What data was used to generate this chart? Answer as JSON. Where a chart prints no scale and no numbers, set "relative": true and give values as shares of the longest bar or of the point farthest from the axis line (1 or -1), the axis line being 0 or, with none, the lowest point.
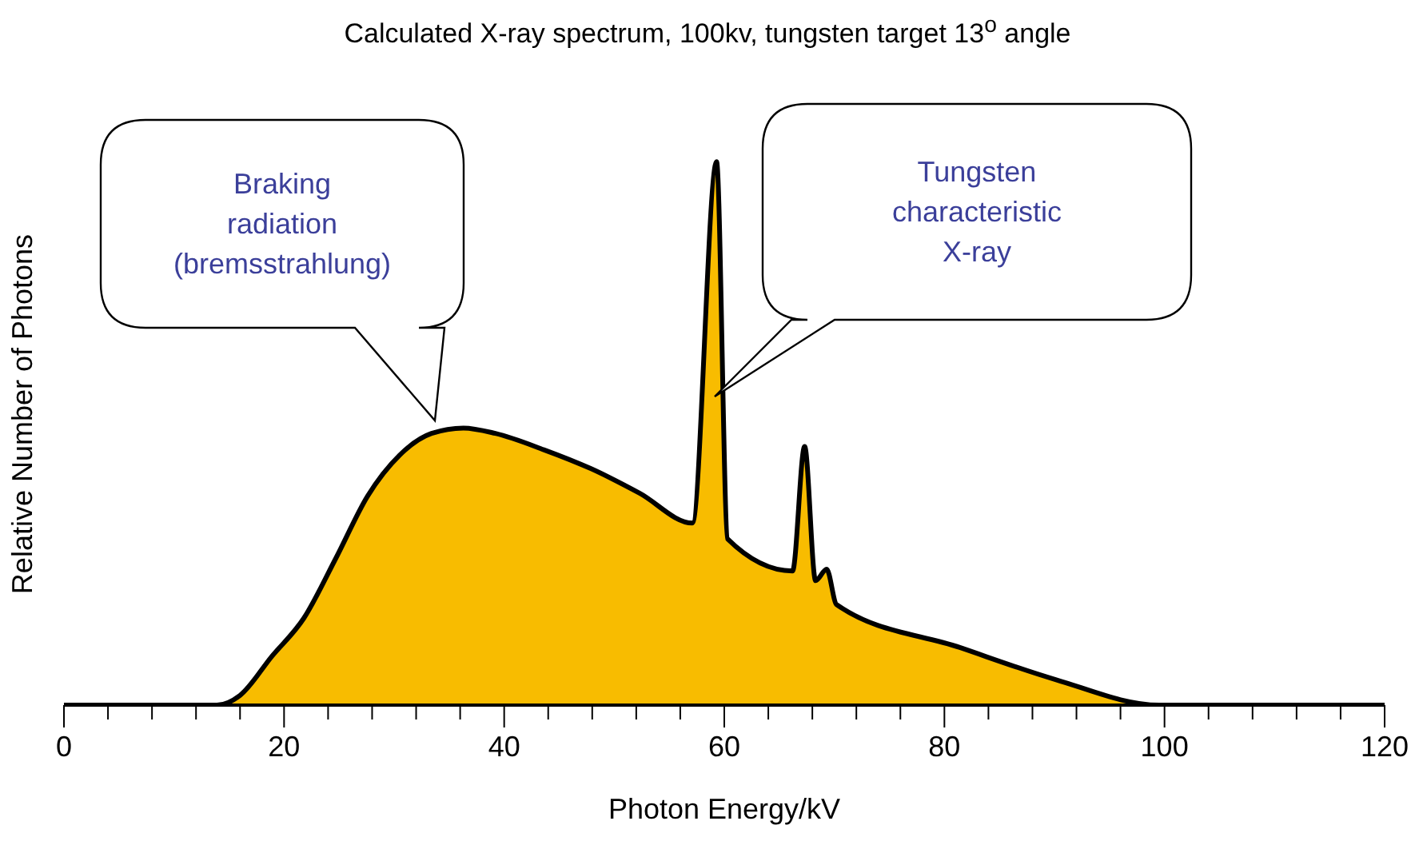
{
  "chart_data": {
    "type": "area",
    "title": "Calculated X-ray spectrum, 100kv, tungsten target 13$^{o}$ angle",
    "xlabel": "Photon Energy/kV",
    "ylabel": "Relative Number of Photons",
    "relative": true,
    "x": [
      0,
      13.9,
      16,
      18.9,
      21.8,
      24.7,
      27.6,
      30.5,
      33.4,
      36.3,
      39.2,
      43.6,
      47.9,
      52.3,
      57.1,
      59.3,
      60.3,
      66.2,
      67.3,
      68.3,
      69.3,
      70.2,
      81.4,
      90.1,
      99.5,
      120
    ],
    "values": [
      0,
      0,
      0.018,
      0.09,
      0.16,
      0.27,
      0.385,
      0.46,
      0.5,
      0.51,
      0.5,
      0.47,
      0.435,
      0.39,
      0.335,
      1,
      0.306,
      0.247,
      0.476,
      0.229,
      0.25,
      0.185,
      0.106,
      0.047,
      0,
      0
    ],
    "color": "#f8bc00",
    "xlim": [
      0,
      120
    ],
    "xticks": [
      0,
      {
        "value": 4,
        "label": null
      },
      {
        "value": 8,
        "label": null
      },
      {
        "value": 12,
        "label": null
      },
      {
        "value": 16,
        "label": null
      },
      20,
      {
        "value": 24,
        "label": null
      },
      {
        "value": 28,
        "label": null
      },
      {
        "value": 32,
        "label": null
      },
      {
        "value": 36,
        "label": null
      },
      40,
      {
        "value": 44,
        "label": null
      },
      {
        "value": 48,
        "label": null
      },
      {
        "value": 52,
        "label": null
      },
      {
        "value": 56,
        "label": null
      },
      60,
      {
        "value": 64,
        "label": null
      },
      {
        "value": 68,
        "label": null
      },
      {
        "value": 72,
        "label": null
      },
      {
        "value": 76,
        "label": null
      },
      80,
      {
        "value": 84,
        "label": null
      },
      {
        "value": 88,
        "label": null
      },
      {
        "value": 92,
        "label": null
      },
      {
        "value": 96,
        "label": null
      },
      100,
      {
        "value": 104,
        "label": null
      },
      {
        "value": 108,
        "label": null
      },
      {
        "value": 112,
        "label": null
      },
      {
        "value": 116,
        "label": null
      },
      120
    ],
    "annotations": [
      "Braking\nradiation\n(bremsstrahlung)",
      "Tungsten\ncharacteristic\nX-ray"
    ]
  }
}
